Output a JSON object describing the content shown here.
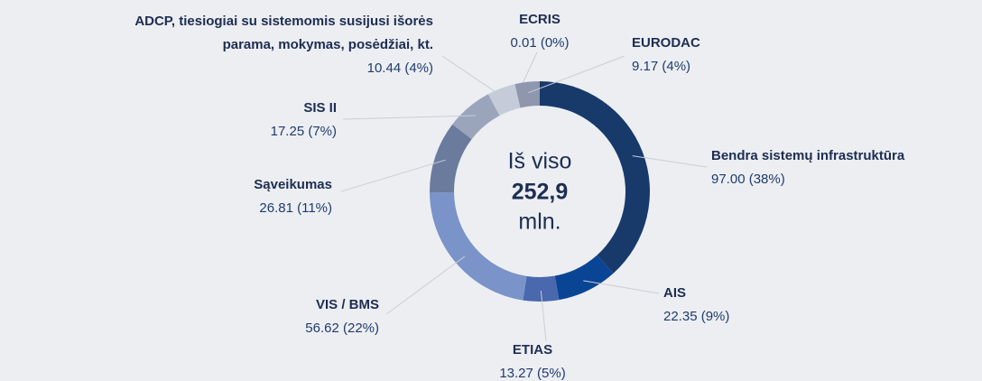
{
  "chart_data": {
    "type": "pie",
    "categories": [
      "Bendra sistemų infrastruktūra",
      "AIS",
      "ETIAS",
      "VIS / BMS",
      "Sąveikumas",
      "SIS II",
      "ADCP, tiesiogiai su sistemomis susijusi išorės\nparama, mokymas, posėdžiai, kt.",
      "ECRIS",
      "EURODAC"
    ],
    "values": [
      97.0,
      22.35,
      13.27,
      56.62,
      26.81,
      17.25,
      10.44,
      0.01,
      9.17
    ],
    "value_labels": [
      "97.00 (38%)",
      "22.35 (9%)",
      "13.27 (5%)",
      "56.62 (22%)",
      "26.81 (11%)",
      "17.25 (7%)",
      "10.44 (4%)",
      "0.01 (0%)",
      "9.17 (4%)"
    ],
    "colors": [
      "#183a6a",
      "#0a4595",
      "#4968ae",
      "#7a93c8",
      "#6b7b9e",
      "#9aa5bc",
      "#c5cbd9",
      "#b3bacb",
      "#8e97ad"
    ],
    "center_label": [
      "Iš viso",
      "252,9",
      "mln."
    ]
  }
}
